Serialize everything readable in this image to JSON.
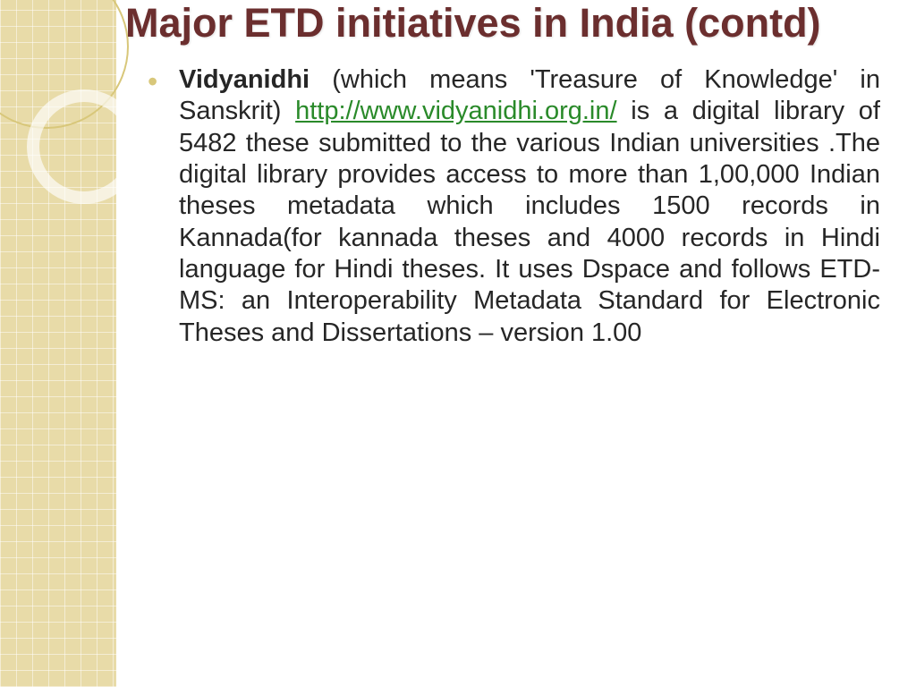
{
  "slide": {
    "title": "Major ETD initiatives in India (contd)",
    "bullet": {
      "lead": "Vidyanidhi",
      "part1": " (which means 'Treasure of Knowledge' in Sanskrit) ",
      "link_text": "http://www.vidyanidhi.org.in/",
      "part2": " is a digital library of 5482 these submitted to the various Indian universities .The digital library provides access to more than 1,00,000 Indian theses metadata which includes 1500 records in Kannada(for kannada theses and 4000 records in Hindi language for Hindi  theses. It uses Dspace and follows ETD-MS: an Interoperability Metadata Standard for Electronic Theses and Dissertations – version 1.00"
    }
  },
  "style": {
    "title_color": "#6b2e2e",
    "link_color": "#2a8a2a",
    "body_color": "#262626",
    "decoration_bg": "#e8dba8",
    "circle_border": "#d8c77a",
    "bullet_color": "#d8c77a",
    "background": "#ffffff",
    "title_fontsize": 45,
    "body_fontsize": 29
  }
}
